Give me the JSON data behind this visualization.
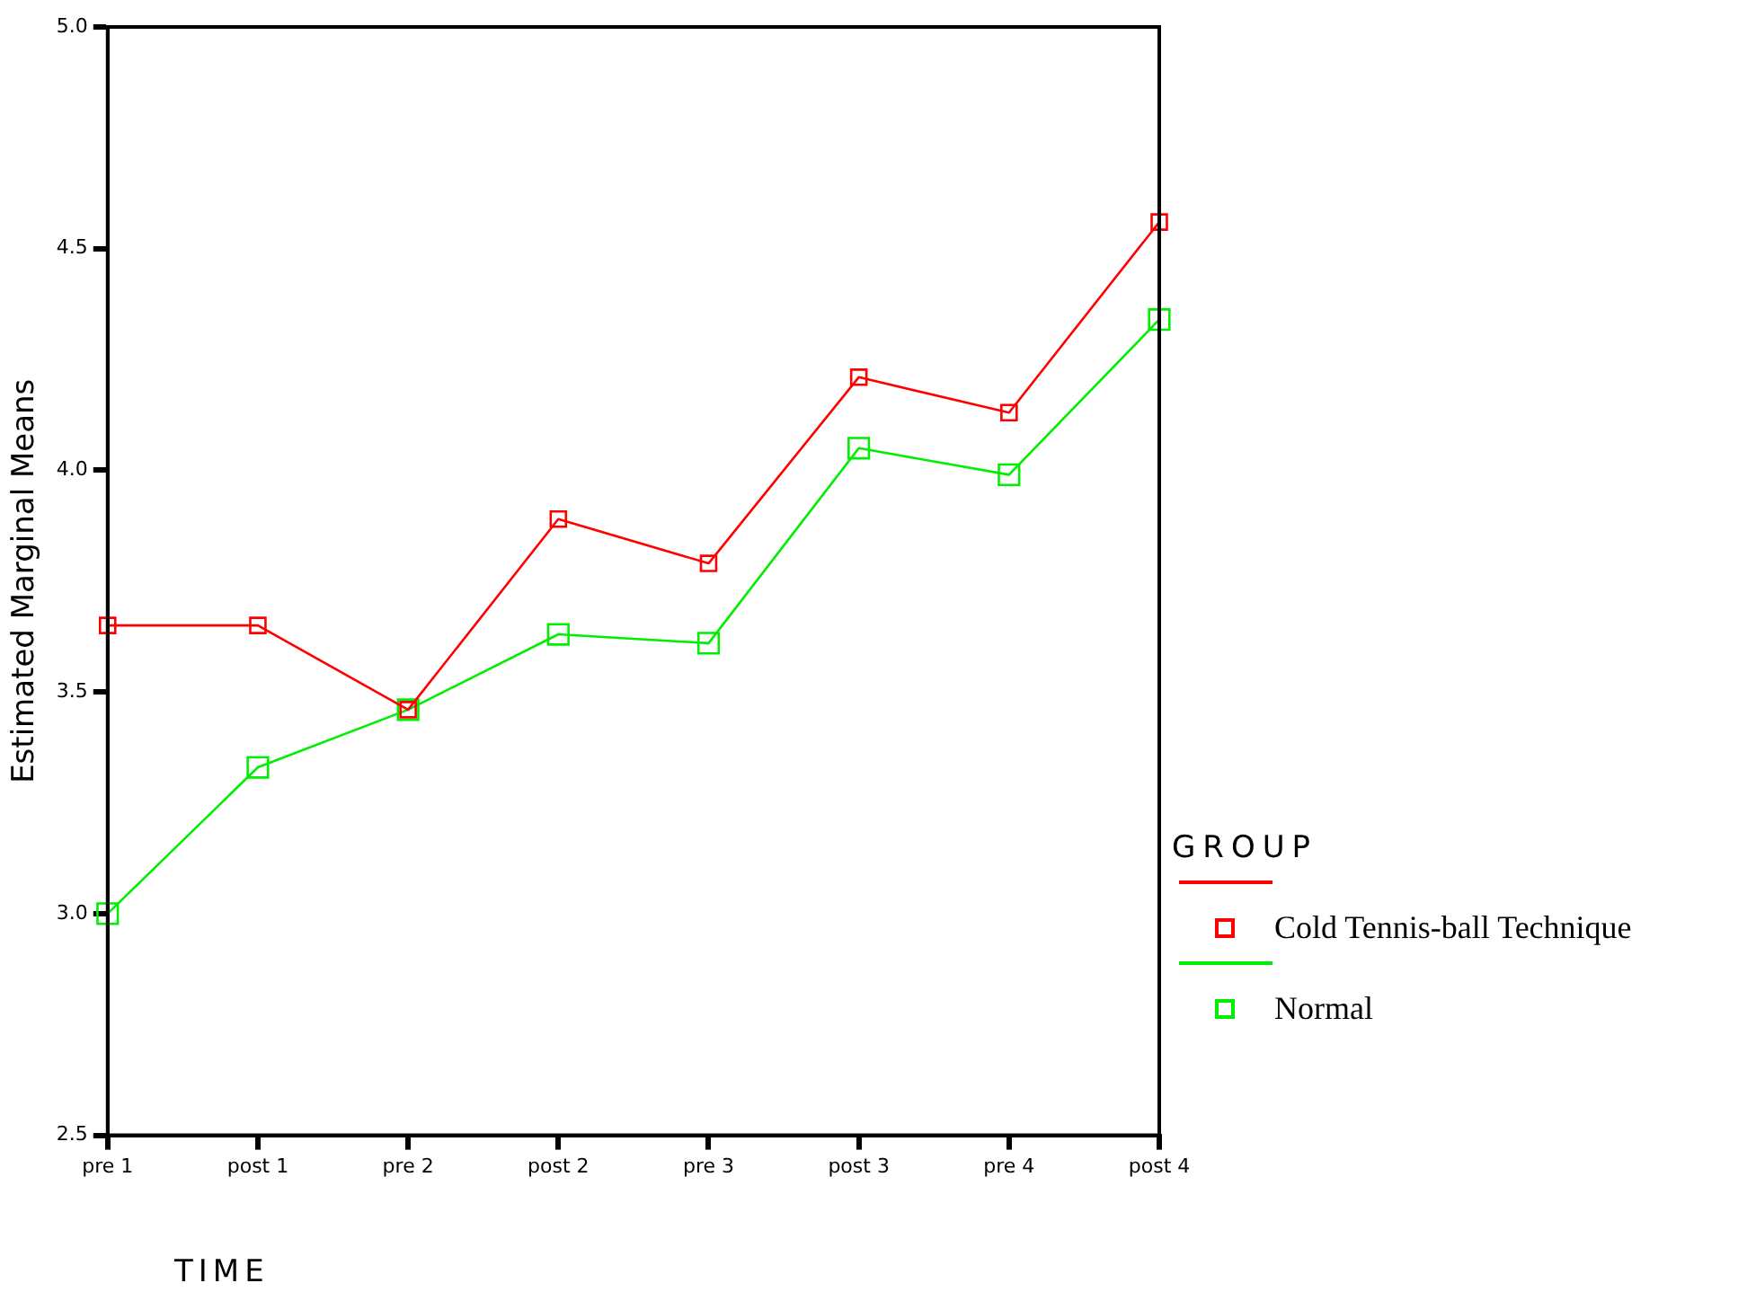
{
  "chart_data": {
    "type": "line",
    "xlabel": "TIME",
    "ylabel": "Estimated Marginal Means",
    "legend_title": "GROUP",
    "categories": [
      "pre 1",
      "post 1",
      "pre 2",
      "post 2",
      "pre 3",
      "post 3",
      "pre 4",
      "post 4"
    ],
    "series": [
      {
        "name": "Cold Tennis-ball Technique",
        "color": "#ff0000",
        "values": [
          3.65,
          3.65,
          3.46,
          3.89,
          3.79,
          4.21,
          4.13,
          4.56
        ]
      },
      {
        "name": "Normal",
        "color": "#00ee00",
        "values": [
          3.0,
          3.33,
          3.46,
          3.63,
          3.61,
          4.05,
          3.99,
          4.34
        ]
      }
    ],
    "ylim": [
      2.5,
      5.0
    ],
    "yticks": [
      {
        "value": 2.5,
        "label": "2.5"
      },
      {
        "value": 3,
        "label": "3.0"
      },
      {
        "value": 3.5,
        "label": "3.5"
      },
      {
        "value": 4,
        "label": "4.0"
      },
      {
        "value": 4.5,
        "label": "4.5"
      },
      {
        "value": 5,
        "label": "5.0"
      }
    ],
    "grid": false,
    "legend": "right",
    "marker": "square",
    "line_style": "solid"
  }
}
